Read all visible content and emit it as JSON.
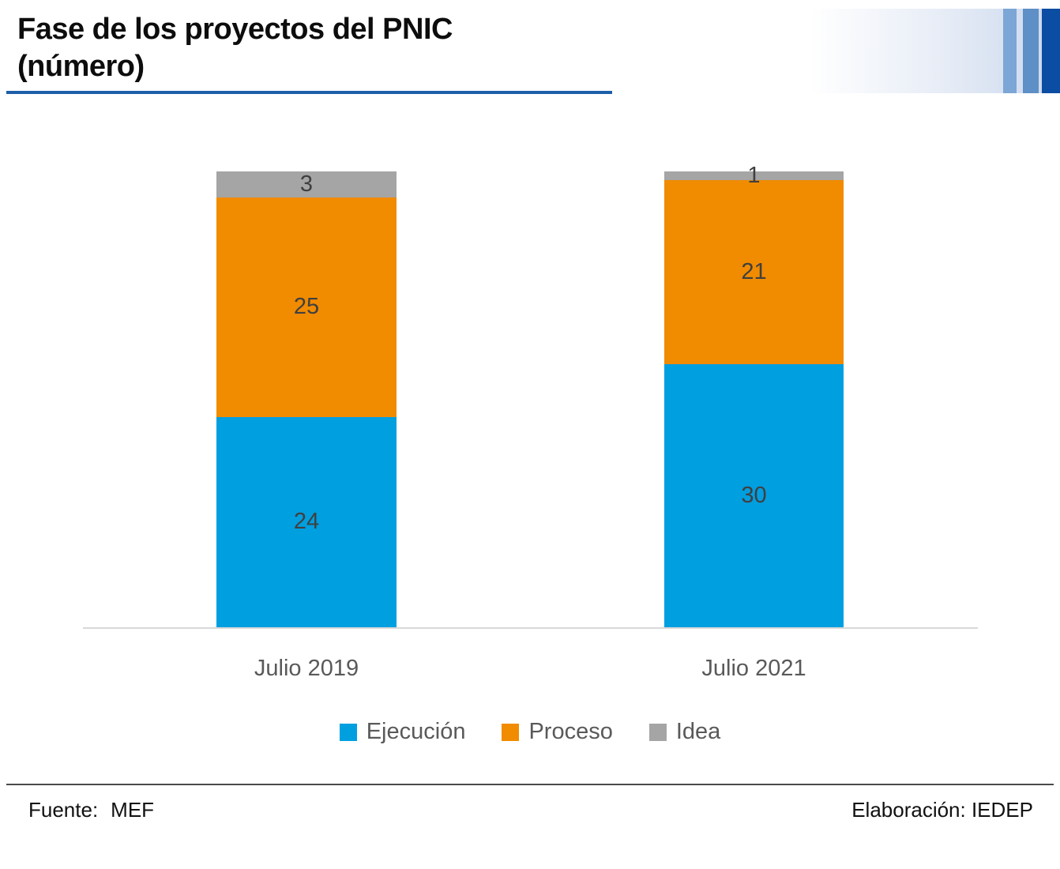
{
  "header": {
    "underline_color": "#1E5FA9",
    "decoration": {
      "gradient_end_color": "#C9D7EC",
      "stripe_colors": [
        "#7CA6D5",
        "#5E8FC6",
        "#0B4DA2"
      ]
    }
  },
  "chart_data": {
    "type": "bar",
    "stacked": true,
    "title": "Fase de los proyectos del PNIC",
    "subtitle": "(número)",
    "categories": [
      "Julio 2019",
      "Julio 2021"
    ],
    "series": [
      {
        "key": "ejecucion",
        "name": "Ejecución",
        "color": "#009FE0",
        "values": [
          24,
          30
        ]
      },
      {
        "key": "proceso",
        "name": "Proceso",
        "color": "#F18B00",
        "values": [
          25,
          21
        ]
      },
      {
        "key": "idea",
        "name": "Idea",
        "color": "#A5A5A5",
        "values": [
          3,
          1
        ]
      }
    ],
    "totals": [
      52,
      52
    ],
    "ylim": [
      0,
      52
    ],
    "value_labels": true,
    "grid": false,
    "legend_position": "bottom",
    "axis_line_color": "#D9D9D9",
    "value_label_color": "#404040",
    "category_label_color": "#595959"
  },
  "footer": {
    "source_label": "Fuente:",
    "source_value": "MEF",
    "elaboration": "Elaboración: IEDEP"
  }
}
